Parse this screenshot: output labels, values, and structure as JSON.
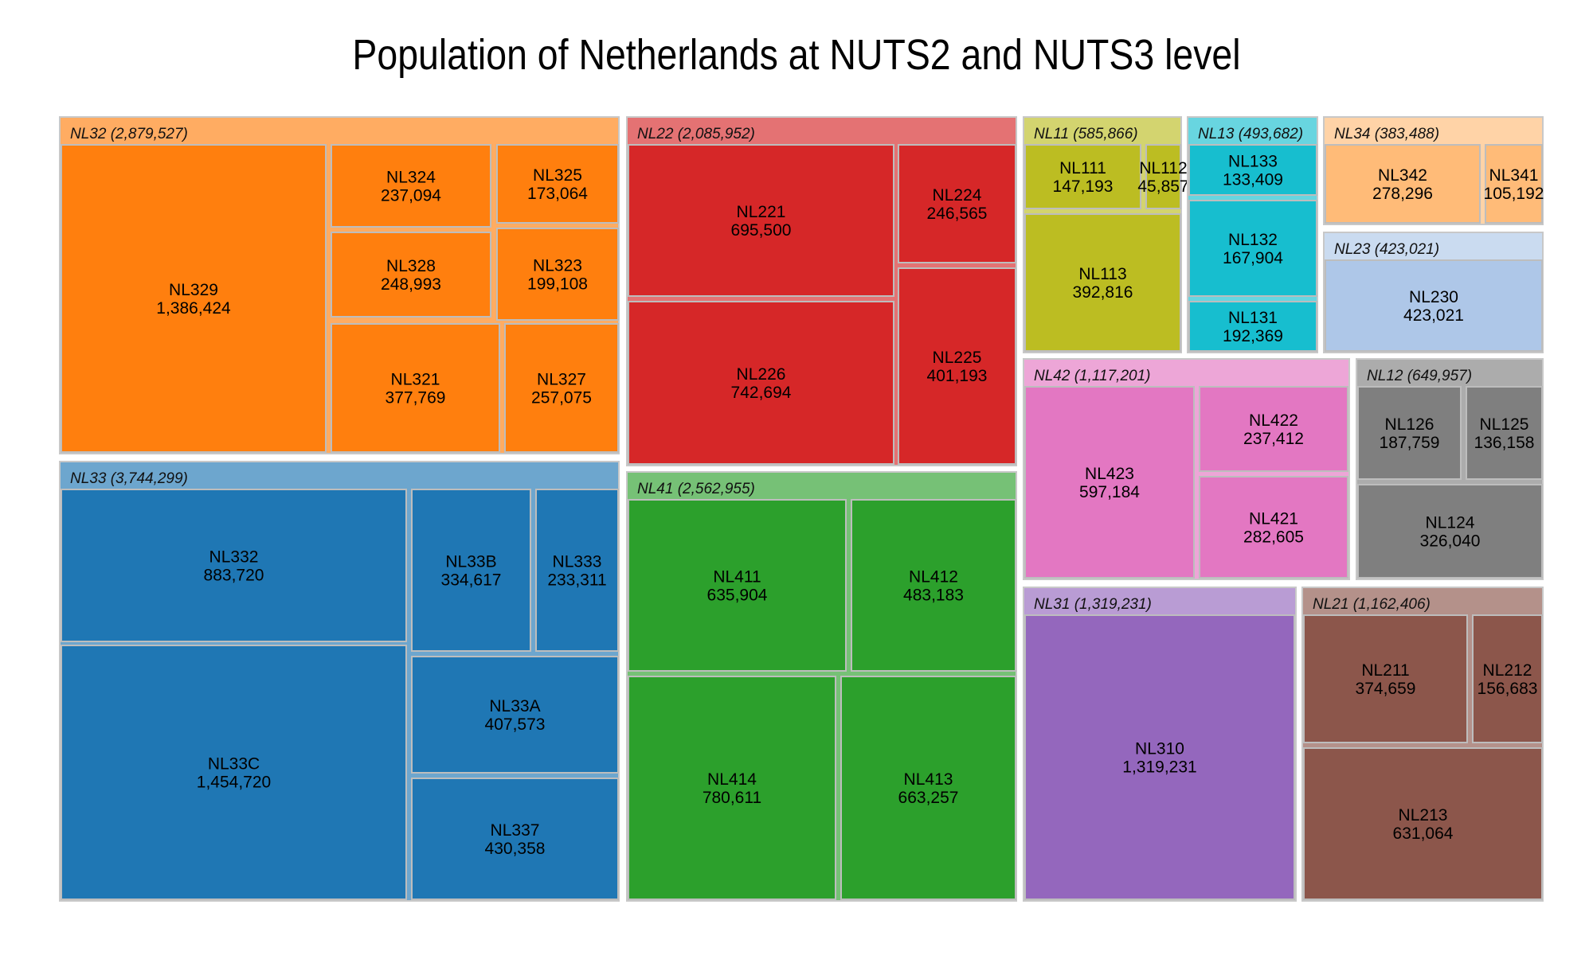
{
  "chart_data": {
    "type": "treemap",
    "title": "Population of Netherlands at NUTS2 and NUTS3 level",
    "groups": [
      {
        "label": "NL32 (2,879,527)",
        "color": "#ff7f0e",
        "children": [
          {
            "code": "NL329",
            "value": "1,386,424"
          },
          {
            "code": "NL324",
            "value": "237,094"
          },
          {
            "code": "NL325",
            "value": "173,064"
          },
          {
            "code": "NL328",
            "value": "248,993"
          },
          {
            "code": "NL323",
            "value": "199,108"
          },
          {
            "code": "NL321",
            "value": "377,769"
          },
          {
            "code": "NL327",
            "value": "257,075"
          }
        ]
      },
      {
        "label": "NL33 (3,744,299)",
        "color": "#1f77b4",
        "children": [
          {
            "code": "NL332",
            "value": "883,720"
          },
          {
            "code": "NL33B",
            "value": "334,617"
          },
          {
            "code": "NL333",
            "value": "233,311"
          },
          {
            "code": "NL33C",
            "value": "1,454,720"
          },
          {
            "code": "NL33A",
            "value": "407,573"
          },
          {
            "code": "NL337",
            "value": "430,358"
          }
        ]
      },
      {
        "label": "NL22 (2,085,952)",
        "color": "#d62728",
        "children": [
          {
            "code": "NL221",
            "value": "695,500"
          },
          {
            "code": "NL224",
            "value": "246,565"
          },
          {
            "code": "NL226",
            "value": "742,694"
          },
          {
            "code": "NL225",
            "value": "401,193"
          }
        ]
      },
      {
        "label": "NL41 (2,562,955)",
        "color": "#2ca02c",
        "children": [
          {
            "code": "NL411",
            "value": "635,904"
          },
          {
            "code": "NL412",
            "value": "483,183"
          },
          {
            "code": "NL414",
            "value": "780,611"
          },
          {
            "code": "NL413",
            "value": "663,257"
          }
        ]
      },
      {
        "label": "NL11 (585,866)",
        "color": "#bcbd22",
        "children": [
          {
            "code": "NL111",
            "value": "147,193"
          },
          {
            "code": "NL112",
            "value": "45,857"
          },
          {
            "code": "NL113",
            "value": "392,816"
          }
        ]
      },
      {
        "label": "NL13 (493,682)",
        "color": "#17becf",
        "children": [
          {
            "code": "NL133",
            "value": "133,409"
          },
          {
            "code": "NL132",
            "value": "167,904"
          },
          {
            "code": "NL131",
            "value": "192,369"
          }
        ]
      },
      {
        "label": "NL34 (383,488)",
        "color": "#ffbb78",
        "children": [
          {
            "code": "NL342",
            "value": "278,296"
          },
          {
            "code": "NL341",
            "value": "105,192"
          }
        ]
      },
      {
        "label": "NL23 (423,021)",
        "color": "#aec7e8",
        "children": [
          {
            "code": "NL230",
            "value": "423,021"
          }
        ]
      },
      {
        "label": "NL42 (1,117,201)",
        "color": "#e377c2",
        "children": [
          {
            "code": "NL423",
            "value": "597,184"
          },
          {
            "code": "NL422",
            "value": "237,412"
          },
          {
            "code": "NL421",
            "value": "282,605"
          }
        ]
      },
      {
        "label": "NL12 (649,957)",
        "color": "#7f7f7f",
        "children": [
          {
            "code": "NL126",
            "value": "187,759"
          },
          {
            "code": "NL125",
            "value": "136,158"
          },
          {
            "code": "NL124",
            "value": "326,040"
          }
        ]
      },
      {
        "label": "NL31 (1,319,231)",
        "color": "#9467bd",
        "children": [
          {
            "code": "NL310",
            "value": "1,319,231"
          }
        ]
      },
      {
        "label": "NL21 (1,162,406)",
        "color": "#8c564b",
        "children": [
          {
            "code": "NL211",
            "value": "374,659"
          },
          {
            "code": "NL212",
            "value": "156,683"
          },
          {
            "code": "NL213",
            "value": "631,064"
          }
        ]
      }
    ]
  }
}
